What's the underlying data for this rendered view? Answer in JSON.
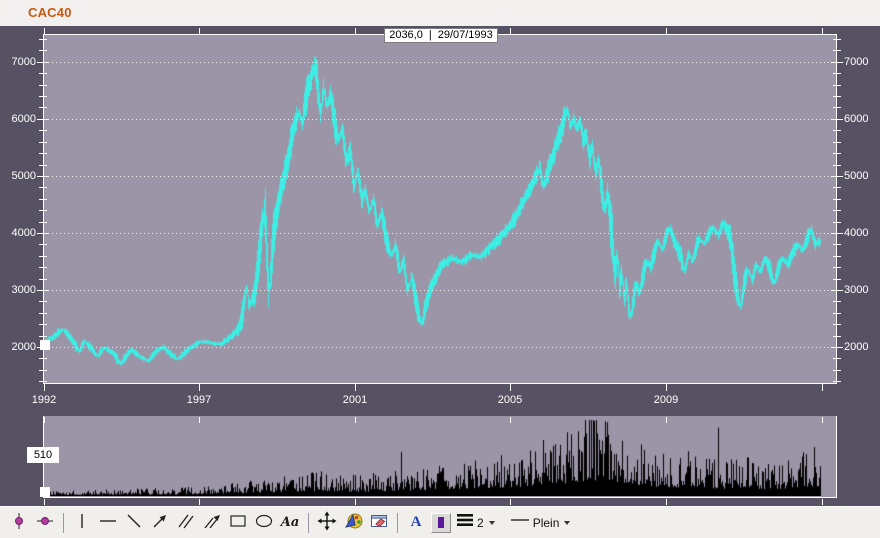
{
  "window": {
    "title": "CAC40"
  },
  "colors": {
    "title": "#c85912",
    "price_line": "#3ceee4",
    "plot_bg": "#9c95a8",
    "panel_bg": "#575263",
    "volume_bars": "#000000",
    "axis": "#ffffff",
    "cursor_dot": "#b23c9c",
    "font_color_a": "#2341b5",
    "color_swatch": "#5a189c"
  },
  "tooltip": {
    "value": "2036,0",
    "separator": "|",
    "date": "29/07/1993"
  },
  "volume_panel": {
    "scale_label": "510"
  },
  "chart_data": {
    "type": "line",
    "title": "CAC40",
    "xlabel": "",
    "ylabel": "",
    "x_range_years": [
      "1992",
      "2012"
    ],
    "ylim": [
      1370,
      7470
    ],
    "y_ticks": [
      2000,
      3000,
      4000,
      5000,
      6000,
      7000
    ],
    "y_minor_step": 200,
    "grid": "horizontal-dotted",
    "legend": "none",
    "x_ticks": [
      {
        "pos": 0.0,
        "label": "1992"
      },
      {
        "pos": 0.1963,
        "label": "1997"
      },
      {
        "pos": 0.3927,
        "label": "2001"
      },
      {
        "pos": 0.589,
        "label": "2005"
      },
      {
        "pos": 0.7854,
        "label": "2009"
      },
      {
        "pos": 0.9817,
        "label": ""
      }
    ],
    "series": [
      {
        "name": "CAC40 price",
        "color": "#3ceee4",
        "points": [
          [
            0,
            2080
          ],
          [
            0.012,
            2180
          ],
          [
            0.024,
            2320
          ],
          [
            0.034,
            2150
          ],
          [
            0.045,
            1930
          ],
          [
            0.052,
            2100
          ],
          [
            0.06,
            1980
          ],
          [
            0.068,
            1840
          ],
          [
            0.077,
            1990
          ],
          [
            0.088,
            1900
          ],
          [
            0.098,
            1710
          ],
          [
            0.112,
            1960
          ],
          [
            0.122,
            1840
          ],
          [
            0.134,
            1760
          ],
          [
            0.145,
            1940
          ],
          [
            0.153,
            2000
          ],
          [
            0.163,
            1870
          ],
          [
            0.172,
            1790
          ],
          [
            0.184,
            1940
          ],
          [
            0.201,
            2100
          ],
          [
            0.212,
            2080
          ],
          [
            0.228,
            2050
          ],
          [
            0.24,
            2180
          ],
          [
            0.25,
            2320
          ],
          [
            0.256,
            2600
          ],
          [
            0.26,
            3094
          ],
          [
            0.2635,
            2695
          ],
          [
            0.267,
            2850
          ],
          [
            0.271,
            2950
          ],
          [
            0.274,
            3300
          ],
          [
            0.278,
            3800
          ],
          [
            0.282,
            4300
          ],
          [
            0.2845,
            4404
          ],
          [
            0.287,
            3500
          ],
          [
            0.289,
            2881
          ],
          [
            0.292,
            3400
          ],
          [
            0.295,
            3958
          ],
          [
            0.299,
            4300
          ],
          [
            0.304,
            4700
          ],
          [
            0.309,
            5000
          ],
          [
            0.314,
            5300
          ],
          [
            0.319,
            5700
          ],
          [
            0.324,
            5958
          ],
          [
            0.328,
            6100
          ],
          [
            0.332,
            5900
          ],
          [
            0.336,
            6300
          ],
          [
            0.34,
            6550
          ],
          [
            0.344,
            6750
          ],
          [
            0.3485,
            6944
          ],
          [
            0.352,
            6600
          ],
          [
            0.3555,
            6080
          ],
          [
            0.359,
            6520
          ],
          [
            0.365,
            6260
          ],
          [
            0.369,
            6430
          ],
          [
            0.374,
            5900
          ],
          [
            0.379,
            5640
          ],
          [
            0.384,
            5820
          ],
          [
            0.389,
            5270
          ],
          [
            0.394,
            5450
          ],
          [
            0.399,
            4830
          ],
          [
            0.404,
            5100
          ],
          [
            0.409,
            4570
          ],
          [
            0.414,
            4750
          ],
          [
            0.418,
            4390
          ],
          [
            0.424,
            4570
          ],
          [
            0.429,
            4130
          ],
          [
            0.434,
            4390
          ],
          [
            0.441,
            3870
          ],
          [
            0.447,
            3600
          ],
          [
            0.452,
            3780
          ],
          [
            0.458,
            3340
          ],
          [
            0.463,
            3520
          ],
          [
            0.468,
            2980
          ],
          [
            0.473,
            3250
          ],
          [
            0.48,
            2720
          ],
          [
            0.486,
            2401
          ],
          [
            0.49,
            2650
          ],
          [
            0.495,
            2900
          ],
          [
            0.5,
            3100
          ],
          [
            0.512,
            3450
          ],
          [
            0.525,
            3560
          ],
          [
            0.538,
            3480
          ],
          [
            0.55,
            3620
          ],
          [
            0.562,
            3580
          ],
          [
            0.574,
            3750
          ],
          [
            0.586,
            3900
          ],
          [
            0.598,
            4100
          ],
          [
            0.608,
            4300
          ],
          [
            0.617,
            4550
          ],
          [
            0.625,
            4750
          ],
          [
            0.632,
            4950
          ],
          [
            0.638,
            5150
          ],
          [
            0.643,
            4820
          ],
          [
            0.648,
            5050
          ],
          [
            0.654,
            5300
          ],
          [
            0.66,
            5550
          ],
          [
            0.665,
            5750
          ],
          [
            0.669,
            5950
          ],
          [
            0.674,
            6168
          ],
          [
            0.678,
            5850
          ],
          [
            0.682,
            6050
          ],
          [
            0.686,
            5800
          ],
          [
            0.69,
            6000
          ],
          [
            0.694,
            5600
          ],
          [
            0.698,
            5750
          ],
          [
            0.702,
            5300
          ],
          [
            0.706,
            5500
          ],
          [
            0.71,
            5050
          ],
          [
            0.714,
            5250
          ],
          [
            0.718,
            4800
          ],
          [
            0.722,
            4400
          ],
          [
            0.7255,
            4700
          ],
          [
            0.729,
            4200
          ],
          [
            0.732,
            3900
          ],
          [
            0.735,
            3200
          ],
          [
            0.738,
            3600
          ],
          [
            0.741,
            3000
          ],
          [
            0.744,
            3300
          ],
          [
            0.747,
            2800
          ],
          [
            0.75,
            3100
          ],
          [
            0.753,
            2650
          ],
          [
            0.756,
            2519
          ],
          [
            0.759,
            2850
          ],
          [
            0.763,
            3100
          ],
          [
            0.767,
            2950
          ],
          [
            0.771,
            3250
          ],
          [
            0.776,
            3500
          ],
          [
            0.781,
            3400
          ],
          [
            0.786,
            3650
          ],
          [
            0.791,
            3850
          ],
          [
            0.796,
            3700
          ],
          [
            0.801,
            3950
          ],
          [
            0.806,
            4090
          ],
          [
            0.81,
            3900
          ],
          [
            0.815,
            3750
          ],
          [
            0.82,
            3600
          ],
          [
            0.825,
            3300
          ],
          [
            0.83,
            3650
          ],
          [
            0.835,
            3500
          ],
          [
            0.84,
            3750
          ],
          [
            0.845,
            3900
          ],
          [
            0.85,
            3800
          ],
          [
            0.855,
            3950
          ],
          [
            0.862,
            4090
          ],
          [
            0.868,
            3950
          ],
          [
            0.874,
            4169
          ],
          [
            0.879,
            4050
          ],
          [
            0.884,
            3900
          ],
          [
            0.889,
            3300
          ],
          [
            0.893,
            2950
          ],
          [
            0.897,
            2693
          ],
          [
            0.902,
            3150
          ],
          [
            0.907,
            3350
          ],
          [
            0.912,
            3150
          ],
          [
            0.917,
            3450
          ],
          [
            0.922,
            3300
          ],
          [
            0.928,
            3550
          ],
          [
            0.934,
            3400
          ],
          [
            0.94,
            3100
          ],
          [
            0.946,
            3400
          ],
          [
            0.952,
            3550
          ],
          [
            0.958,
            3450
          ],
          [
            0.964,
            3650
          ],
          [
            0.97,
            3800
          ],
          [
            0.976,
            3700
          ],
          [
            0.982,
            3850
          ],
          [
            0.988,
            4060
          ],
          [
            0.993,
            3800
          ],
          [
            1,
            3870
          ]
        ]
      }
    ],
    "volume": {
      "color": "#000000",
      "scale_label": "510",
      "anchors": [
        [
          0,
          2.5
        ],
        [
          0.04,
          3
        ],
        [
          0.08,
          3.5
        ],
        [
          0.12,
          4
        ],
        [
          0.16,
          4.5
        ],
        [
          0.2,
          5.5
        ],
        [
          0.24,
          7
        ],
        [
          0.28,
          9
        ],
        [
          0.32,
          12
        ],
        [
          0.35,
          14
        ],
        [
          0.38,
          13
        ],
        [
          0.41,
          12
        ],
        [
          0.44,
          14
        ],
        [
          0.47,
          15
        ],
        [
          0.5,
          17
        ],
        [
          0.53,
          19
        ],
        [
          0.56,
          22
        ],
        [
          0.59,
          24
        ],
        [
          0.62,
          27
        ],
        [
          0.65,
          32
        ],
        [
          0.68,
          38
        ],
        [
          0.7,
          42
        ],
        [
          0.72,
          45
        ],
        [
          0.74,
          40
        ],
        [
          0.76,
          34
        ],
        [
          0.78,
          26
        ],
        [
          0.8,
          22
        ],
        [
          0.82,
          24
        ],
        [
          0.84,
          27
        ],
        [
          0.86,
          22
        ],
        [
          0.88,
          20
        ],
        [
          0.9,
          24
        ],
        [
          0.92,
          20
        ],
        [
          0.94,
          19
        ],
        [
          0.96,
          22
        ],
        [
          0.98,
          26
        ],
        [
          1,
          28
        ]
      ]
    }
  },
  "toolbar": {
    "text_tool_label": "Aa",
    "font_color_label": "A",
    "line_width_value": "2",
    "line_style_value": "Plein"
  }
}
